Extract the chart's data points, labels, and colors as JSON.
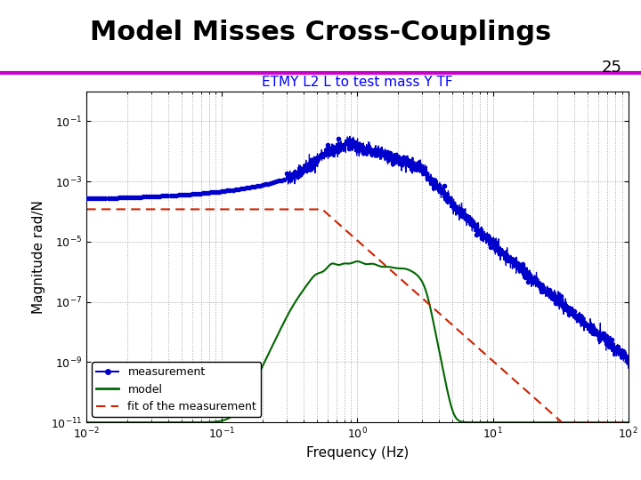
{
  "title": "Model Misses Cross-Couplings",
  "subtitle": "ETMY L2 L to test mass Y TF",
  "xlabel": "Frequency (Hz)",
  "ylabel": "Magnitude rad/N",
  "xlim": [
    0.01,
    100
  ],
  "ylim": [
    1e-11,
    1.0
  ],
  "slide_number": "25",
  "header_line_color": "#cc00cc",
  "measurement_color": "#0000cc",
  "model_color": "#006600",
  "fit_color": "#cc2200",
  "subtitle_color": "#0000ff",
  "legend_labels": [
    "measurement",
    "model",
    "fit of the measurement"
  ],
  "title_fontsize": 22,
  "subtitle_fontsize": 11,
  "axis_label_fontsize": 11,
  "tick_fontsize": 9,
  "legend_fontsize": 9
}
